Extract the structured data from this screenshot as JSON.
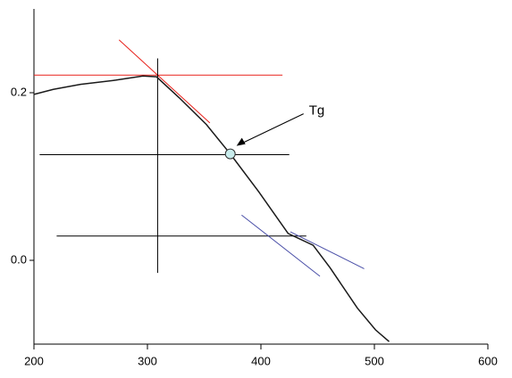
{
  "chart_data": {
    "type": "line",
    "x": [
      200,
      217,
      241,
      272,
      296,
      308,
      328,
      352,
      373,
      398,
      424,
      446,
      461,
      485,
      501,
      513
    ],
    "series": [
      {
        "color": "#1a1a1a",
        "values": [
          0.198,
          0.204,
          0.21,
          0.215,
          0.22,
          0.219,
          0.194,
          0.162,
          0.127,
          0.082,
          0.032,
          0.018,
          -0.009,
          -0.057,
          -0.083,
          -0.097
        ]
      }
    ],
    "xlim": [
      200,
      600
    ],
    "ylim": [
      -0.1,
      0.3
    ],
    "xticks": [
      200,
      300,
      400,
      500,
      600
    ],
    "yticks": [
      {
        "value": 0,
        "label": "0.0"
      },
      0.2
    ],
    "lines": [
      {
        "color": "#e8201a",
        "x": [
          200,
          419
        ],
        "y": [
          0.221,
          0.221
        ]
      },
      {
        "color": "#e8201a",
        "x": [
          275,
          355
        ],
        "y": [
          0.263,
          0.164
        ]
      },
      {
        "color": "#000000",
        "x": [
          309,
          309
        ],
        "y": [
          0.241,
          -0.015
        ]
      },
      {
        "color": "#000000",
        "x": [
          205,
          425
        ],
        "y": [
          0.126,
          0.126
        ]
      },
      {
        "color": "#000000",
        "x": [
          220,
          440
        ],
        "y": [
          0.029,
          0.029
        ]
      },
      {
        "color": "#4a4fa8",
        "x": [
          383,
          452
        ],
        "y": [
          0.054,
          -0.019
        ]
      },
      {
        "color": "#4a4fa8",
        "x": [
          426,
          491
        ],
        "y": [
          0.034,
          -0.01
        ]
      }
    ],
    "annotation": {
      "text": "Tg",
      "x": 373,
      "y": 0.127,
      "color": "#c8ecec"
    }
  }
}
